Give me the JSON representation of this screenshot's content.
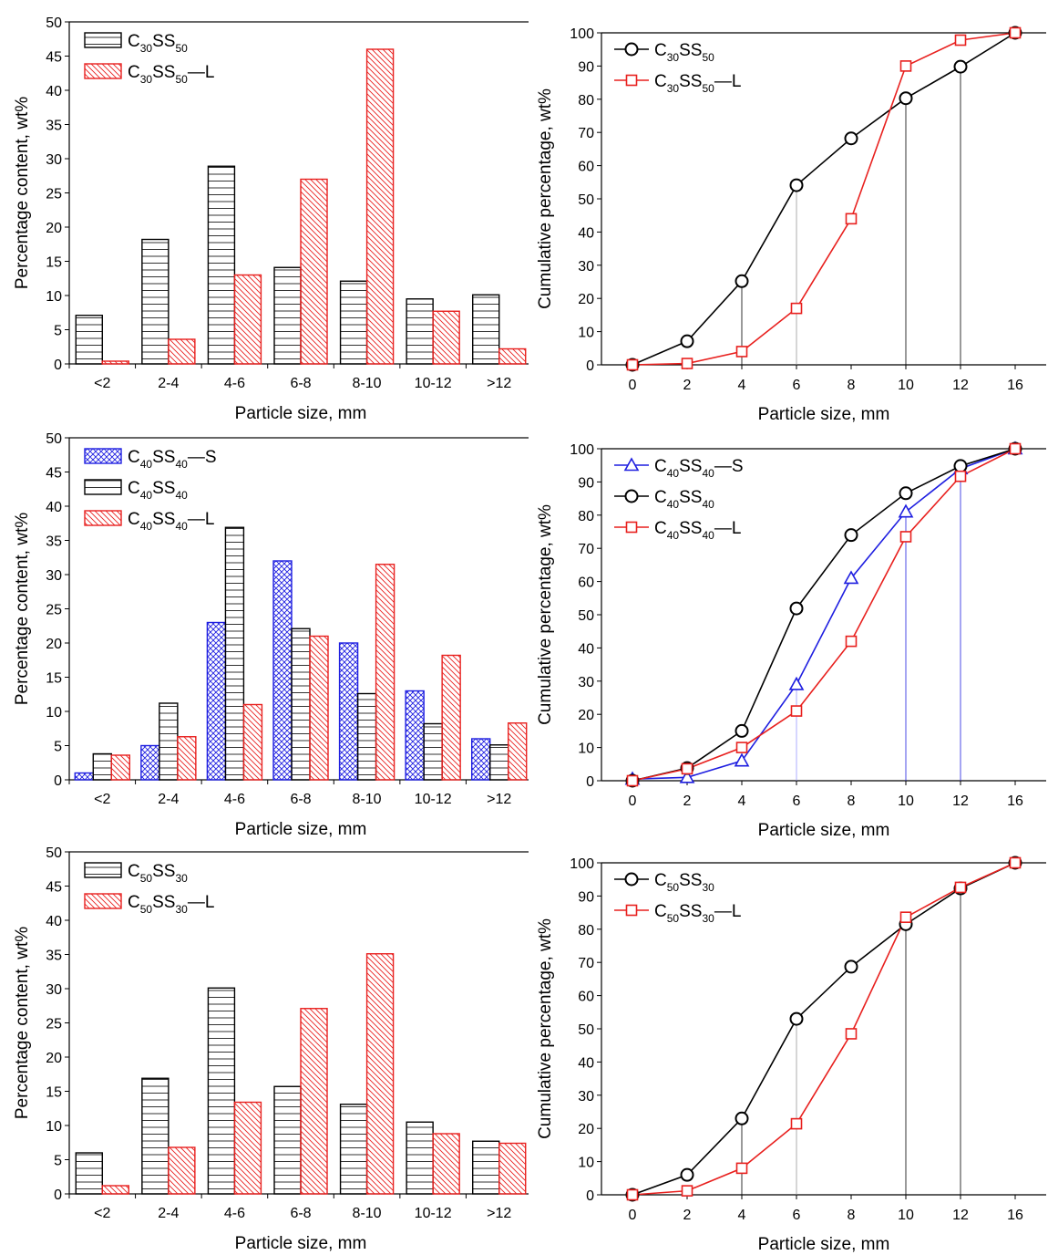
{
  "colors": {
    "black": "#000000",
    "red": "#e8201e",
    "blue": "#1e1ee0"
  },
  "chart_data": [
    {
      "type": "bar",
      "xlabel": "Particle size, mm",
      "ylabel": "Percentage content, wt%",
      "ylim": [
        0,
        50
      ],
      "yticks": [
        0,
        5,
        10,
        15,
        20,
        25,
        30,
        35,
        40,
        45,
        50
      ],
      "categories": [
        "<2",
        "2-4",
        "4-6",
        "6-8",
        "8-10",
        "10-12",
        ">12"
      ],
      "legend_position": "top-left",
      "series": [
        {
          "name": "C30SS50",
          "label_parts": [
            "C",
            "30",
            "SS",
            "50",
            ""
          ],
          "color": "#000000",
          "pattern": "hlines",
          "values": [
            7.1,
            18.2,
            28.9,
            14.1,
            12.1,
            9.5,
            10.1
          ]
        },
        {
          "name": "C30SS50—L",
          "label_parts": [
            "C",
            "30",
            "SS",
            "50",
            "—L"
          ],
          "color": "#e8201e",
          "pattern": "diag",
          "values": [
            0.4,
            3.6,
            13.0,
            27.0,
            46.0,
            7.7,
            2.2
          ]
        }
      ]
    },
    {
      "type": "line",
      "xlabel": "Particle size, mm",
      "ylabel": "Cumulative percentage, wt%",
      "ylim": [
        0,
        100
      ],
      "yticks": [
        0,
        10,
        20,
        30,
        40,
        50,
        60,
        70,
        80,
        90,
        100
      ],
      "x_categories": [
        "0",
        "2",
        "4",
        "6",
        "8",
        "10",
        "12",
        "16"
      ],
      "legend_position": "top-left",
      "droplines": [
        {
          "x_index": 2,
          "to": 25.2,
          "color": "#000000"
        },
        {
          "x_index": 3,
          "to": 54.1,
          "color": "#999999"
        },
        {
          "x_index": 5,
          "to": 80.3,
          "color": "#000000"
        },
        {
          "x_index": 6,
          "to": 89.8,
          "color": "#000000"
        }
      ],
      "series": [
        {
          "name": "C30SS50",
          "label_parts": [
            "C",
            "30",
            "SS",
            "50",
            ""
          ],
          "color": "#000000",
          "marker": "circle",
          "values": [
            0,
            7.1,
            25.2,
            54.1,
            68.2,
            80.3,
            89.8,
            100
          ]
        },
        {
          "name": "C30SS50—L",
          "label_parts": [
            "C",
            "30",
            "SS",
            "50",
            "—L"
          ],
          "color": "#e8201e",
          "marker": "square",
          "values": [
            0,
            0.4,
            4.0,
            17.0,
            44.0,
            90.0,
            97.8,
            100
          ]
        }
      ]
    },
    {
      "type": "bar",
      "xlabel": "Particle size, mm",
      "ylabel": "Percentage content, wt%",
      "ylim": [
        0,
        50
      ],
      "yticks": [
        0,
        5,
        10,
        15,
        20,
        25,
        30,
        35,
        40,
        45,
        50
      ],
      "categories": [
        "<2",
        "2-4",
        "4-6",
        "6-8",
        "8-10",
        "10-12",
        ">12"
      ],
      "legend_position": "top-left",
      "series": [
        {
          "name": "C40SS40—S",
          "label_parts": [
            "C",
            "40",
            "SS",
            "40",
            "—S"
          ],
          "color": "#1e1ee0",
          "pattern": "cross",
          "values": [
            1.0,
            5.0,
            23.0,
            32.0,
            20.0,
            13.0,
            6.0
          ]
        },
        {
          "name": "C40SS40",
          "label_parts": [
            "C",
            "40",
            "SS",
            "40",
            ""
          ],
          "color": "#000000",
          "pattern": "hlines",
          "values": [
            3.8,
            11.2,
            36.9,
            22.1,
            12.6,
            8.2,
            5.1
          ]
        },
        {
          "name": "C40SS40—L",
          "label_parts": [
            "C",
            "40",
            "SS",
            "40",
            "—L"
          ],
          "color": "#e8201e",
          "pattern": "diag",
          "values": [
            3.6,
            6.3,
            11.0,
            21.0,
            31.5,
            18.2,
            8.3
          ]
        }
      ]
    },
    {
      "type": "line",
      "xlabel": "Particle size, mm",
      "ylabel": "Cumulative percentage, wt%",
      "ylim": [
        0,
        100
      ],
      "yticks": [
        0,
        10,
        20,
        30,
        40,
        50,
        60,
        70,
        80,
        90,
        100
      ],
      "x_categories": [
        "0",
        "2",
        "4",
        "6",
        "8",
        "10",
        "12",
        "16"
      ],
      "legend_position": "top-left",
      "droplines": [
        {
          "x_index": 3,
          "to": 29.0,
          "color": "#9999ff"
        },
        {
          "x_index": 5,
          "to": 81.0,
          "color": "#1e1ee0"
        },
        {
          "x_index": 6,
          "to": 94.0,
          "color": "#1e1ee0"
        }
      ],
      "series": [
        {
          "name": "C40SS40—S",
          "label_parts": [
            "C",
            "40",
            "SS",
            "40",
            "—S"
          ],
          "color": "#1e1ee0",
          "marker": "triangle",
          "values": [
            0.5,
            1.0,
            6.0,
            29.0,
            61.0,
            81.0,
            94.0,
            100
          ]
        },
        {
          "name": "C40SS40",
          "label_parts": [
            "C",
            "40",
            "SS",
            "40",
            ""
          ],
          "color": "#000000",
          "marker": "circle",
          "values": [
            0,
            3.8,
            15.0,
            51.9,
            74.0,
            86.6,
            94.8,
            100
          ]
        },
        {
          "name": "C40SS40—L",
          "label_parts": [
            "C",
            "40",
            "SS",
            "40",
            "—L"
          ],
          "color": "#e8201e",
          "marker": "square",
          "values": [
            0,
            3.6,
            10.0,
            21.0,
            42.0,
            73.5,
            91.7,
            100
          ]
        }
      ]
    },
    {
      "type": "bar",
      "xlabel": "Particle size, mm",
      "ylabel": "Percentage content, wt%",
      "ylim": [
        0,
        50
      ],
      "yticks": [
        0,
        5,
        10,
        15,
        20,
        25,
        30,
        35,
        40,
        45,
        50
      ],
      "categories": [
        "<2",
        "2-4",
        "4-6",
        "6-8",
        "8-10",
        "10-12",
        ">12"
      ],
      "legend_position": "top-left",
      "series": [
        {
          "name": "C50SS30",
          "label_parts": [
            "C",
            "50",
            "SS",
            "30",
            ""
          ],
          "color": "#000000",
          "pattern": "hlines",
          "values": [
            6.0,
            16.9,
            30.1,
            15.7,
            13.1,
            10.5,
            7.7
          ]
        },
        {
          "name": "C50SS30—L",
          "label_parts": [
            "C",
            "50",
            "SS",
            "30",
            "—L"
          ],
          "color": "#e8201e",
          "pattern": "diag",
          "values": [
            1.2,
            6.8,
            13.4,
            27.1,
            35.1,
            8.8,
            7.4
          ]
        }
      ]
    },
    {
      "type": "line",
      "xlabel": "Particle size, mm",
      "ylabel": "Cumulative percentage, wt%",
      "ylim": [
        0,
        100
      ],
      "yticks": [
        0,
        10,
        20,
        30,
        40,
        50,
        60,
        70,
        80,
        90,
        100
      ],
      "x_categories": [
        "0",
        "2",
        "4",
        "6",
        "8",
        "10",
        "12",
        "16"
      ],
      "legend_position": "top-left",
      "droplines": [
        {
          "x_index": 2,
          "to": 23.0,
          "color": "#000000"
        },
        {
          "x_index": 3,
          "to": 53.0,
          "color": "#999999"
        },
        {
          "x_index": 5,
          "to": 81.5,
          "color": "#000000"
        },
        {
          "x_index": 6,
          "to": 92.3,
          "color": "#000000"
        }
      ],
      "series": [
        {
          "name": "C50SS30",
          "label_parts": [
            "C",
            "50",
            "SS",
            "30",
            ""
          ],
          "color": "#000000",
          "marker": "circle",
          "values": [
            0,
            6.0,
            23.0,
            53.0,
            68.7,
            81.5,
            92.3,
            100
          ]
        },
        {
          "name": "C50SS30—L",
          "label_parts": [
            "C",
            "50",
            "SS",
            "30",
            "—L"
          ],
          "color": "#e8201e",
          "marker": "square",
          "values": [
            0,
            1.2,
            8.0,
            21.4,
            48.5,
            83.6,
            92.6,
            100
          ]
        }
      ]
    }
  ]
}
